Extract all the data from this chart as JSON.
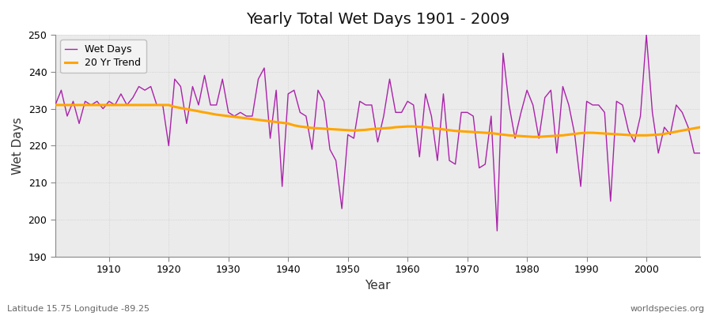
{
  "title": "Yearly Total Wet Days 1901 - 2009",
  "xlabel": "Year",
  "ylabel": "Wet Days",
  "subtitle_left": "Latitude 15.75 Longitude -89.25",
  "subtitle_right": "worldspecies.org",
  "xlim": [
    1901,
    2009
  ],
  "ylim": [
    190,
    250
  ],
  "yticks": [
    190,
    200,
    210,
    220,
    230,
    240,
    250
  ],
  "xticks": [
    1910,
    1920,
    1930,
    1940,
    1950,
    1960,
    1970,
    1980,
    1990,
    2000
  ],
  "line_color": "#AA22AA",
  "trend_color": "#FFA500",
  "bg_color": "#FFFFFF",
  "plot_bg_color": "#EBEBEB",
  "legend_labels": [
    "Wet Days",
    "20 Yr Trend"
  ],
  "years": [
    1901,
    1902,
    1903,
    1904,
    1905,
    1906,
    1907,
    1908,
    1909,
    1910,
    1911,
    1912,
    1913,
    1914,
    1915,
    1916,
    1917,
    1918,
    1919,
    1920,
    1921,
    1922,
    1923,
    1924,
    1925,
    1926,
    1927,
    1928,
    1929,
    1930,
    1931,
    1932,
    1933,
    1934,
    1935,
    1936,
    1937,
    1938,
    1939,
    1940,
    1941,
    1942,
    1943,
    1944,
    1945,
    1946,
    1947,
    1948,
    1949,
    1950,
    1951,
    1952,
    1953,
    1954,
    1955,
    1956,
    1957,
    1958,
    1959,
    1960,
    1961,
    1962,
    1963,
    1964,
    1965,
    1966,
    1967,
    1968,
    1969,
    1970,
    1971,
    1972,
    1973,
    1974,
    1975,
    1976,
    1977,
    1978,
    1979,
    1980,
    1981,
    1982,
    1983,
    1984,
    1985,
    1986,
    1987,
    1988,
    1989,
    1990,
    1991,
    1992,
    1993,
    1994,
    1995,
    1996,
    1997,
    1998,
    1999,
    2000,
    2001,
    2002,
    2003,
    2004,
    2005,
    2006,
    2007,
    2008,
    2009
  ],
  "wet_days": [
    231,
    235,
    228,
    232,
    226,
    232,
    231,
    232,
    230,
    232,
    231,
    234,
    231,
    233,
    236,
    235,
    236,
    231,
    231,
    220,
    238,
    236,
    226,
    236,
    231,
    239,
    231,
    231,
    238,
    229,
    228,
    229,
    228,
    228,
    238,
    241,
    222,
    235,
    209,
    234,
    235,
    229,
    228,
    219,
    235,
    232,
    219,
    216,
    203,
    223,
    222,
    232,
    231,
    231,
    221,
    228,
    238,
    229,
    229,
    232,
    231,
    217,
    234,
    228,
    216,
    234,
    216,
    215,
    229,
    229,
    228,
    214,
    215,
    228,
    197,
    245,
    231,
    222,
    229,
    235,
    231,
    222,
    233,
    235,
    218,
    236,
    231,
    223,
    209,
    232,
    231,
    231,
    229,
    205,
    232,
    231,
    224,
    221,
    228,
    250,
    229,
    218,
    225,
    223,
    231,
    229,
    225,
    218,
    218
  ],
  "trend_values_x": [
    1901,
    1902,
    1903,
    1904,
    1905,
    1906,
    1907,
    1908,
    1909,
    1910,
    1911,
    1912,
    1913,
    1914,
    1915,
    1916,
    1917,
    1918,
    1919,
    1920,
    1921,
    1922,
    1923,
    1924,
    1925,
    1926,
    1927,
    1928,
    1929,
    1930,
    1931,
    1932,
    1933,
    1934,
    1935,
    1936,
    1937,
    1938,
    1939,
    1940,
    1941,
    1942,
    1943,
    1944,
    1945,
    1946,
    1947,
    1948,
    1949,
    1950,
    1951,
    1952,
    1953,
    1954,
    1955,
    1956,
    1957,
    1958,
    1959,
    1960,
    1961,
    1962,
    1963,
    1964,
    1965,
    1966,
    1967,
    1968,
    1969,
    1970,
    1971,
    1972,
    1973,
    1974,
    1975,
    1976,
    1977,
    1978,
    1979,
    1980,
    1981,
    1982,
    1983,
    1984,
    1985,
    1986,
    1987,
    1988,
    1989,
    1990,
    1991,
    1992,
    1993,
    1994,
    1995,
    1996,
    1997,
    1998,
    1999,
    2000,
    2001,
    2002,
    2003,
    2004,
    2005,
    2006,
    2007,
    2008,
    2009
  ],
  "trend_values": [
    231.0,
    231.0,
    231.0,
    231.0,
    231.0,
    231.0,
    231.0,
    231.0,
    231.0,
    231.0,
    231.0,
    231.0,
    231.0,
    231.0,
    231.0,
    231.0,
    231.0,
    231.0,
    231.0,
    231.0,
    230.5,
    230.2,
    229.9,
    229.6,
    229.3,
    229.0,
    228.7,
    228.4,
    228.2,
    228.0,
    227.8,
    227.6,
    227.4,
    227.2,
    227.0,
    226.8,
    226.6,
    226.4,
    226.2,
    226.0,
    225.5,
    225.2,
    225.0,
    224.8,
    224.7,
    224.6,
    224.5,
    224.4,
    224.3,
    224.2,
    224.1,
    224.2,
    224.3,
    224.5,
    224.6,
    224.7,
    224.8,
    225.0,
    225.1,
    225.2,
    225.2,
    225.1,
    225.0,
    224.8,
    224.6,
    224.4,
    224.2,
    224.0,
    223.9,
    223.8,
    223.7,
    223.6,
    223.5,
    223.4,
    223.2,
    223.0,
    222.8,
    222.7,
    222.6,
    222.5,
    222.4,
    222.4,
    222.5,
    222.6,
    222.7,
    222.8,
    223.0,
    223.2,
    223.4,
    223.5,
    223.5,
    223.4,
    223.3,
    223.2,
    223.1,
    223.0,
    222.9,
    222.8,
    222.8,
    222.8,
    222.9,
    223.0,
    223.2,
    223.5,
    223.8,
    224.1,
    224.4,
    224.7,
    225.0
  ]
}
